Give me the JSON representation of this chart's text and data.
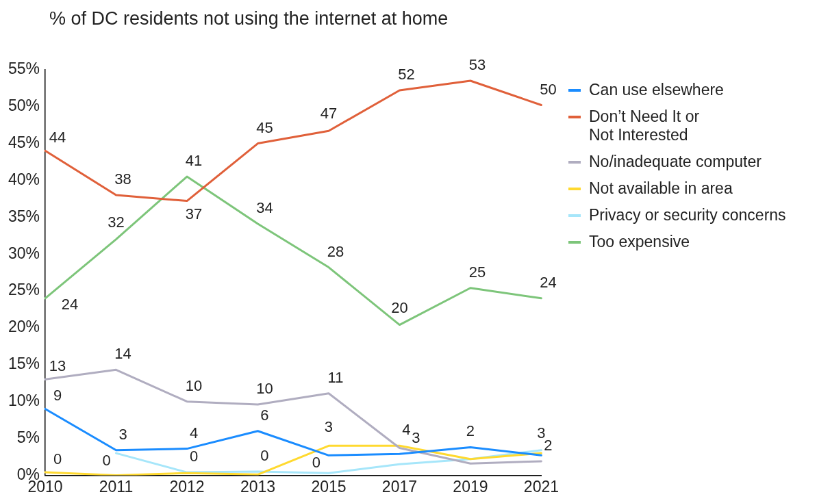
{
  "chart_data": {
    "type": "line",
    "title": "% of DC residents not using the internet at home",
    "categories": [
      "2010",
      "2011",
      "2012",
      "2013",
      "2015",
      "2017",
      "2019",
      "2021"
    ],
    "series": [
      {
        "name": "Can use elsewhere",
        "color": "#1a8cff",
        "values": [
          9,
          3.4,
          3.6,
          6,
          2.7,
          2.9,
          3.8,
          2.7
        ],
        "value_labels": [
          "9",
          "3",
          "4",
          "6",
          "3",
          "3",
          null,
          null
        ]
      },
      {
        "name": "Don’t Need It or Not Interested",
        "color": "#e0603a",
        "values": [
          44,
          38,
          37.2,
          45,
          46.7,
          52.2,
          53.5,
          50.2
        ],
        "value_labels": [
          "44",
          "38",
          "37",
          "45",
          "47",
          "52",
          "53",
          "50"
        ]
      },
      {
        "name": "No/inadequate computer",
        "color": "#b0adc0",
        "values": [
          13,
          14.3,
          10,
          9.6,
          11.1,
          3.7,
          1.6,
          1.9
        ],
        "value_labels": [
          "13",
          "14",
          "10",
          "10",
          "11",
          null,
          null,
          "2"
        ]
      },
      {
        "name": "Not available in area",
        "color": "#ffd92f",
        "values": [
          0.4,
          0,
          0.3,
          0.1,
          4,
          4,
          2.2,
          3
        ],
        "value_labels": [
          "0",
          "0",
          null,
          null,
          null,
          "4",
          "2",
          null
        ]
      },
      {
        "name": "Privacy or security concerns",
        "color": "#a6e6fa",
        "values": [
          null,
          3,
          0.4,
          0.5,
          0.3,
          1.5,
          2.2,
          3.4
        ],
        "value_labels": [
          null,
          null,
          "0",
          "0",
          "0",
          null,
          null,
          "3"
        ]
      },
      {
        "name": "Too expensive",
        "color": "#7dc57a",
        "values": [
          24,
          32,
          40.5,
          34.1,
          28.2,
          20.4,
          25.4,
          24
        ],
        "value_labels": [
          "24",
          "32",
          "41",
          "34",
          "28",
          "20",
          "25",
          "24"
        ]
      }
    ],
    "ylim": [
      0,
      55
    ],
    "yticks": [
      {
        "value": 0,
        "label": "0%"
      },
      {
        "value": 5,
        "label": "5%"
      },
      {
        "value": 10,
        "label": "10%"
      },
      {
        "value": 15,
        "label": "15%"
      },
      {
        "value": 20,
        "label": "20%"
      },
      {
        "value": 25,
        "label": "25%"
      },
      {
        "value": 30,
        "label": "30%"
      },
      {
        "value": 35,
        "label": "35%"
      },
      {
        "value": 40,
        "label": "40%"
      },
      {
        "value": 45,
        "label": "45%"
      },
      {
        "value": 50,
        "label": "50%"
      },
      {
        "value": 55,
        "label": "55%"
      }
    ],
    "grid": false,
    "legend": "right",
    "marker": "none",
    "line_style": "solid"
  }
}
